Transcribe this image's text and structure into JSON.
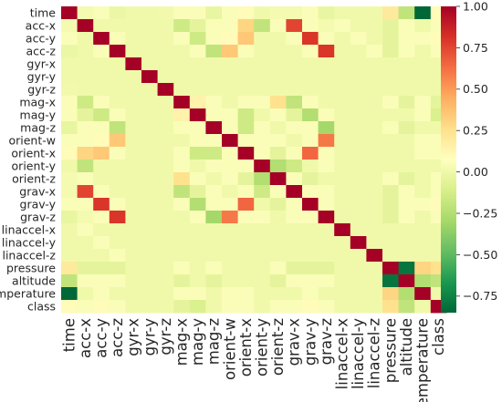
{
  "chart_data": {
    "type": "heatmap",
    "title": "",
    "xlabel": "",
    "ylabel": "",
    "labels": [
      "time",
      "acc-x",
      "acc-y",
      "acc-z",
      "gyr-x",
      "gyr-y",
      "gyr-z",
      "mag-x",
      "mag-y",
      "mag-z",
      "orient-w",
      "orient-x",
      "orient-y",
      "orient-z",
      "grav-x",
      "grav-y",
      "grav-z",
      "linaccel-x",
      "linaccel-y",
      "linaccel-z",
      "pressure",
      "altitude",
      "temperature",
      "class"
    ],
    "colorbar": {
      "colormap": "RdYlGn_r",
      "vmin": -0.85,
      "vmax": 1.0,
      "ticks": [
        1.0,
        0.75,
        0.5,
        0.25,
        0.0,
        -0.25,
        -0.5,
        -0.75
      ],
      "tick_labels": [
        "1.00",
        "0.75",
        "0.50",
        "0.25",
        "0.00",
        "−0.25",
        "−0.50",
        "−0.75"
      ]
    },
    "matrix": [
      [
        1.0,
        0.02,
        0.05,
        -0.02,
        0.0,
        0.0,
        0.01,
        0.05,
        0.05,
        -0.03,
        0.05,
        0.1,
        0.0,
        0.02,
        0.02,
        0.05,
        -0.03,
        0.0,
        0.0,
        0.0,
        0.2,
        -0.2,
        -0.85,
        0.1
      ],
      [
        0.02,
        1.0,
        0.0,
        0.0,
        0.0,
        0.0,
        0.0,
        -0.15,
        -0.05,
        0.05,
        0.05,
        0.3,
        -0.2,
        0.05,
        0.75,
        0.05,
        0.02,
        0.05,
        0.0,
        0.0,
        -0.05,
        0.05,
        0.0,
        0.05
      ],
      [
        0.05,
        0.0,
        1.0,
        0.05,
        0.0,
        0.0,
        0.0,
        0.05,
        -0.15,
        0.05,
        0.1,
        0.35,
        0.0,
        0.0,
        0.05,
        0.8,
        0.05,
        0.0,
        0.05,
        0.0,
        -0.05,
        0.05,
        0.05,
        0.1
      ],
      [
        -0.02,
        0.0,
        0.05,
        1.0,
        0.0,
        0.0,
        0.0,
        0.0,
        0.05,
        -0.2,
        0.35,
        0.05,
        0.0,
        0.0,
        0.0,
        0.05,
        0.8,
        0.0,
        0.0,
        0.05,
        -0.05,
        0.05,
        0.0,
        0.05
      ],
      [
        0.0,
        0.0,
        0.0,
        0.0,
        1.0,
        0.0,
        0.0,
        0.0,
        0.0,
        0.0,
        0.0,
        0.0,
        0.0,
        0.0,
        0.0,
        0.0,
        0.0,
        0.0,
        0.0,
        0.0,
        0.0,
        0.0,
        0.0,
        0.0
      ],
      [
        0.0,
        0.0,
        0.0,
        0.0,
        0.0,
        1.0,
        0.0,
        0.0,
        0.0,
        0.0,
        0.0,
        0.0,
        0.0,
        0.0,
        0.0,
        0.0,
        0.0,
        0.0,
        0.0,
        0.0,
        0.0,
        0.0,
        0.0,
        0.0
      ],
      [
        0.01,
        0.0,
        0.0,
        0.0,
        0.0,
        0.0,
        1.0,
        0.0,
        0.0,
        0.0,
        0.0,
        0.0,
        0.0,
        0.0,
        0.0,
        0.0,
        0.0,
        0.0,
        0.0,
        0.0,
        0.0,
        0.0,
        0.0,
        0.0
      ],
      [
        0.05,
        -0.15,
        0.05,
        0.0,
        0.0,
        0.0,
        0.0,
        1.0,
        0.15,
        0.05,
        0.0,
        0.05,
        0.05,
        0.25,
        -0.2,
        0.05,
        0.0,
        0.0,
        0.0,
        0.0,
        0.05,
        -0.05,
        0.05,
        -0.05
      ],
      [
        0.05,
        -0.05,
        -0.15,
        0.05,
        0.0,
        0.0,
        0.0,
        0.15,
        1.0,
        0.05,
        0.05,
        -0.15,
        0.0,
        0.05,
        -0.05,
        -0.25,
        0.05,
        0.0,
        0.0,
        0.0,
        0.0,
        0.0,
        0.05,
        -0.1
      ],
      [
        -0.03,
        0.05,
        0.05,
        -0.2,
        0.0,
        0.0,
        0.0,
        0.05,
        0.05,
        1.0,
        0.05,
        -0.15,
        0.05,
        0.0,
        0.05,
        0.05,
        -0.3,
        0.0,
        0.0,
        0.0,
        0.05,
        -0.05,
        0.0,
        0.0
      ],
      [
        0.05,
        0.05,
        0.1,
        0.35,
        0.0,
        0.0,
        0.0,
        0.0,
        0.05,
        0.05,
        1.0,
        0.05,
        0.05,
        0.05,
        0.0,
        0.05,
        0.6,
        0.0,
        0.0,
        0.0,
        0.0,
        0.0,
        0.05,
        0.05
      ],
      [
        0.1,
        0.3,
        0.35,
        0.05,
        0.0,
        0.0,
        0.0,
        0.05,
        -0.15,
        -0.15,
        0.05,
        1.0,
        0.05,
        -0.05,
        0.05,
        0.65,
        0.05,
        0.0,
        0.0,
        0.0,
        0.0,
        0.0,
        0.05,
        0.05
      ],
      [
        0.0,
        -0.2,
        0.0,
        0.0,
        0.0,
        0.0,
        0.0,
        0.05,
        0.0,
        0.05,
        0.05,
        0.05,
        1.0,
        -0.25,
        -0.15,
        0.0,
        0.05,
        0.0,
        0.0,
        0.0,
        0.0,
        0.0,
        0.0,
        0.0
      ],
      [
        0.02,
        0.05,
        0.0,
        0.0,
        0.0,
        0.0,
        0.0,
        0.25,
        0.05,
        0.0,
        0.05,
        -0.05,
        -0.25,
        1.0,
        0.05,
        -0.05,
        0.0,
        0.0,
        0.0,
        0.0,
        0.05,
        -0.05,
        0.0,
        0.05
      ],
      [
        0.02,
        0.75,
        0.05,
        0.0,
        0.0,
        0.0,
        0.0,
        -0.2,
        -0.05,
        0.05,
        0.0,
        0.05,
        -0.15,
        0.05,
        1.0,
        0.05,
        0.05,
        0.0,
        0.0,
        0.0,
        -0.05,
        0.05,
        0.0,
        0.05
      ],
      [
        0.05,
        0.05,
        0.8,
        0.05,
        0.0,
        0.0,
        0.0,
        0.05,
        -0.25,
        0.05,
        0.05,
        0.65,
        0.0,
        -0.05,
        0.05,
        1.0,
        0.05,
        0.0,
        0.0,
        0.0,
        -0.05,
        0.05,
        0.05,
        0.1
      ],
      [
        -0.03,
        0.02,
        0.05,
        0.8,
        0.0,
        0.0,
        0.0,
        0.0,
        0.05,
        -0.3,
        0.6,
        0.05,
        0.05,
        0.0,
        0.05,
        0.05,
        1.0,
        0.0,
        0.0,
        0.0,
        -0.05,
        0.05,
        0.0,
        0.05
      ],
      [
        0.0,
        0.05,
        0.0,
        0.0,
        0.0,
        0.0,
        0.0,
        0.0,
        0.0,
        0.0,
        0.0,
        0.0,
        0.0,
        0.0,
        0.0,
        0.0,
        0.0,
        1.0,
        0.0,
        0.0,
        0.0,
        0.0,
        0.0,
        0.0
      ],
      [
        0.0,
        0.0,
        0.05,
        0.0,
        0.0,
        0.0,
        0.0,
        0.0,
        0.0,
        0.0,
        0.0,
        0.0,
        0.0,
        0.0,
        0.0,
        0.0,
        0.0,
        0.0,
        1.0,
        0.0,
        0.0,
        0.0,
        0.0,
        0.0
      ],
      [
        0.0,
        0.0,
        0.0,
        0.05,
        0.0,
        0.0,
        0.0,
        0.0,
        0.0,
        0.0,
        0.0,
        0.0,
        0.0,
        0.0,
        0.0,
        0.0,
        0.0,
        0.0,
        0.0,
        1.0,
        0.0,
        0.0,
        0.0,
        0.0
      ],
      [
        0.2,
        -0.05,
        -0.05,
        -0.05,
        0.0,
        0.0,
        0.0,
        0.05,
        0.0,
        0.05,
        0.0,
        0.0,
        0.0,
        0.05,
        -0.05,
        -0.05,
        -0.05,
        0.0,
        0.0,
        0.0,
        1.0,
        -0.8,
        0.3,
        0.25
      ],
      [
        -0.2,
        0.05,
        0.05,
        0.05,
        0.0,
        0.0,
        0.0,
        -0.05,
        0.0,
        -0.05,
        0.0,
        0.0,
        0.0,
        -0.05,
        0.05,
        0.05,
        0.05,
        0.0,
        0.0,
        0.0,
        -0.8,
        1.0,
        -0.25,
        -0.2
      ],
      [
        -0.85,
        0.0,
        0.05,
        0.0,
        0.0,
        0.0,
        0.0,
        0.05,
        0.05,
        0.0,
        0.05,
        0.05,
        0.0,
        0.0,
        0.0,
        0.05,
        0.0,
        0.0,
        0.0,
        0.0,
        0.3,
        -0.25,
        1.0,
        0.0
      ],
      [
        0.1,
        0.05,
        0.1,
        0.05,
        0.0,
        0.0,
        0.0,
        -0.05,
        -0.1,
        0.0,
        0.05,
        0.05,
        0.0,
        0.05,
        0.05,
        0.1,
        0.05,
        0.0,
        0.0,
        0.0,
        0.25,
        -0.2,
        0.0,
        1.0
      ]
    ]
  }
}
